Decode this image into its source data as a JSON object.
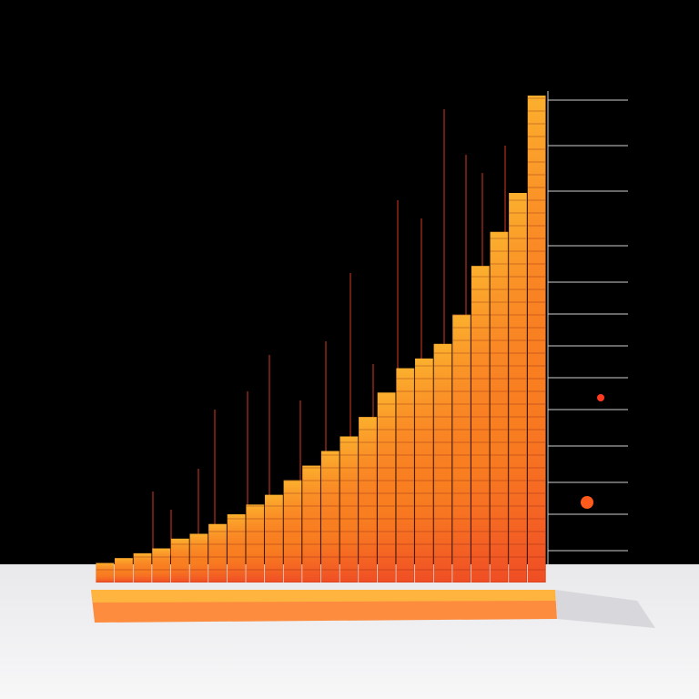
{
  "chart_data": {
    "type": "bar",
    "categories": [
      null,
      null,
      null,
      null,
      null,
      null,
      null,
      null,
      null,
      null,
      null,
      null,
      null,
      null,
      null,
      null,
      null,
      null,
      null,
      null,
      null,
      null,
      null,
      null
    ],
    "values": [
      4,
      5,
      6,
      7,
      9,
      10,
      12,
      14,
      16,
      18,
      21,
      24,
      27,
      30,
      34,
      39,
      44,
      46,
      49,
      55,
      65,
      72,
      80,
      100
    ],
    "color": "#f7841e",
    "ylim": [
      0,
      100
    ]
  }
}
